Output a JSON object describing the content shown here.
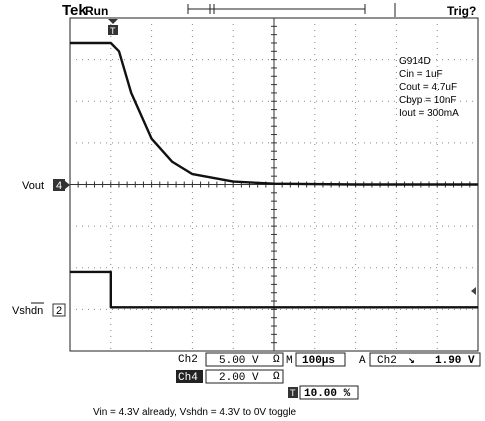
{
  "header": {
    "brand": "Tek",
    "acq_state": "Run",
    "trig_status": "Trig?"
  },
  "annotation": {
    "lines": [
      "G914D",
      "Cin = 1uF",
      "Cout = 4.7uF",
      "Cbyp = 10nF",
      "Iout = 300mA"
    ]
  },
  "channels": {
    "ch4": {
      "label": "Vout",
      "marker": "4",
      "color": "#111111"
    },
    "ch2": {
      "label": "Vshdn",
      "marker": "2",
      "color": "#111111"
    }
  },
  "readouts": {
    "ch2_name": "Ch2",
    "ch2_scale": "5.00 V",
    "ch2_bw": "Ω",
    "ch4_name": "Ch4",
    "ch4_scale": "2.00 V",
    "ch4_bw": "Ω",
    "timebase_prefix": "M",
    "timebase": "100μs",
    "trig_mode": "A",
    "trig_source": "Ch2",
    "trig_slope": "↘",
    "trig_level": "1.90 V",
    "trig_pos_icon_label": "T",
    "trig_position": "10.00 %"
  },
  "caption": "Vin = 4.3V already, Vshdn = 4.3V to 0V toggle",
  "chart_data": {
    "type": "line",
    "title": "",
    "xlabel": "",
    "ylabel": "",
    "x_divisions": 10,
    "y_divisions": 8,
    "time_per_div_us": 100,
    "grid": true,
    "series": [
      {
        "name": "Vout",
        "volts_per_div": 2.0,
        "ground_div": 0,
        "x_us": [
          0,
          60,
          100,
          120,
          150,
          200,
          250,
          300,
          400,
          500,
          700,
          1000
        ],
        "y_div": [
          3.4,
          3.4,
          3.4,
          3.2,
          2.2,
          1.1,
          0.55,
          0.25,
          0.07,
          0.02,
          0,
          0
        ]
      },
      {
        "name": "Vshdn",
        "volts_per_div": 5.0,
        "ground_div": -3,
        "x_us": [
          0,
          100,
          100,
          1000
        ],
        "y_div": [
          -2.1,
          -2.1,
          -2.95,
          -2.95
        ]
      }
    ]
  }
}
